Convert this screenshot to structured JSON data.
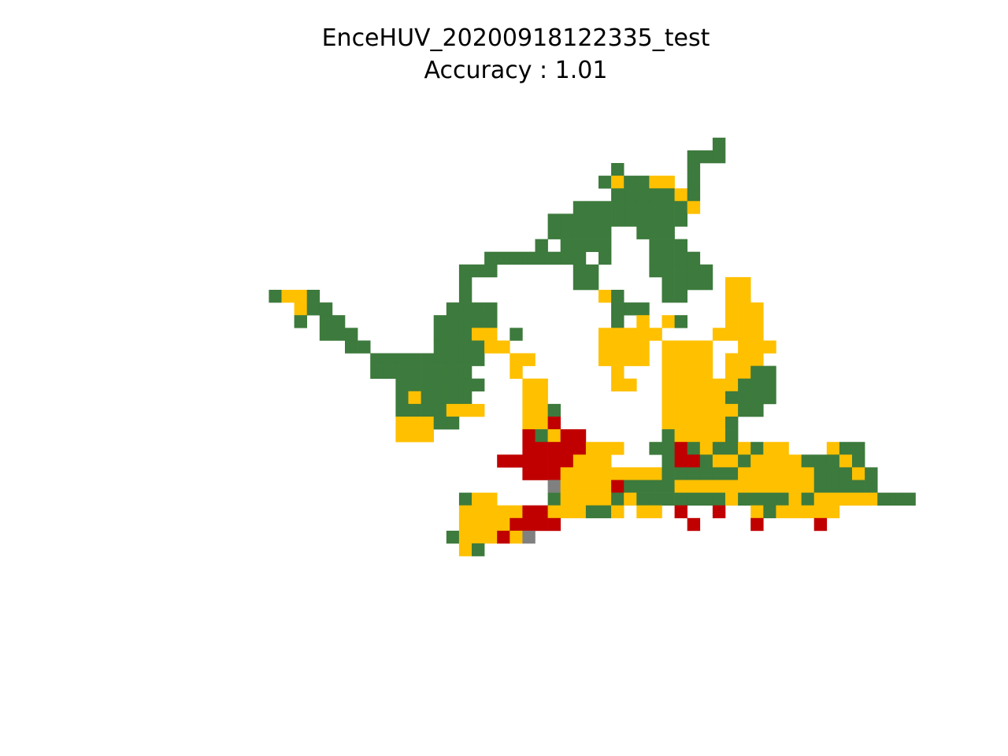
{
  "chart_data": {
    "type": "heatmap",
    "title": "EnceHUV_20200918122335_test",
    "subtitle": "Accuracy : 1.01",
    "axes_visible": false,
    "grid": false,
    "colors": {
      "G": "#3d7a3d",
      "Y": "#ffc000",
      "R": "#c00000",
      "X": "#808080"
    },
    "grid_origin": {
      "col": 21,
      "row": 11
    },
    "rows": [
      "...................................G",
      ".................................GGG",
      "...........................G.....G",
      "..........................GYGGYY.G",
      "...........................GGGGGYG",
      "........................GGGGGGGGGY",
      "......................GGGGGGGGGGG",
      "......................GGGGG..GGG",
      ".....................G.GGGG...GGG",
      ".................GGGGGGGG.G...GGGG",
      "...............GGG......GG....GGGGG",
      "...............G........GG.....GGGG.YY",
      "GYYG...........G..........YG...GG...YY",
      "..YGG.........GGGG.........GGG......YYY",
      "..G.GG.......GGGGG.........G.Y.YG...YYY",
      "....GGG......GGGYY.G......YYYYY....YYYY",
      "......GG.....GGGGYY.......YYYY.YYYY..YYY",
      "........GGGGGGGGG..YY.....YYYY.YYYY.YYY",
      "........GGGGGGGG...Y.......Y...YYYY.YYGG",
      "..........GGGGGGG...YY.....YY..YYYYYYGGG",
      "..........GYGGGG....YY.........YYYYYGGGG",
      "..........GGGGYYY...YYG........YYYYYYGG",
      "..........YYYGG.....YYR........YYYYYG",
      "..........YYY.......RGYRR......GYYYYG",
      "....................RRRRRYYY..GGRGYGGYGYY...YGG",
      "..................RRRRRRYYY....GRRGYYGYYYYGGGYG",
      "....................RRRYYYYYYYYGGGGGGYYYYYYGGGYG",
      "......................XYYYYRGGGGYYYYYYYYYYYGGGGG",
      "...............GYY....GYYYYGYGGGGGGGYGGGGYGYYYYYGGG",
      "...............YYYYYRRYYYGGY.YY.R..R..YGYYYYY",
      "...............YYYYRRRR..........R....R....R",
      "..............GYYYRYX",
      "...............YG"
    ]
  }
}
